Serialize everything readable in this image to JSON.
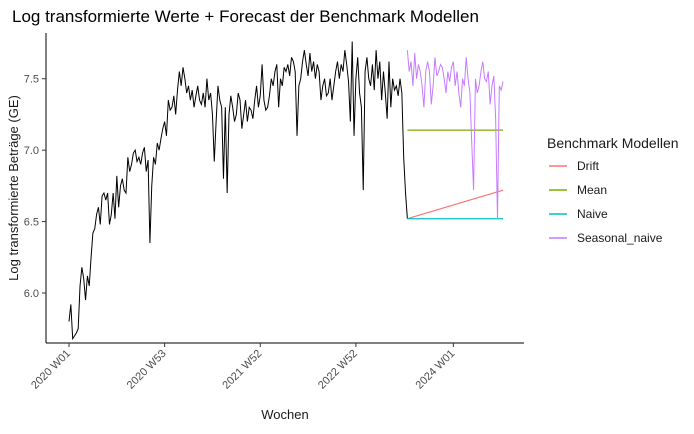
{
  "chart_data": {
    "type": "line",
    "title": "Log transformierte Werte + Forecast der Benchmark Modellen",
    "xlabel": "Wochen",
    "ylabel": "Log transformierte Beträge (GE)",
    "x_ticks": [
      "2020 W01",
      "2020 W53",
      "2021 W52",
      "2022 W52",
      "2024 W01"
    ],
    "y_ticks": [
      "6.0",
      "6.5",
      "7.0",
      "7.5"
    ],
    "ylim": [
      5.65,
      7.82
    ],
    "legend": {
      "title": "Benchmark Modellen",
      "position": "right",
      "entries": [
        "Drift",
        "Mean",
        "Naive",
        "Seasonal_naive"
      ]
    },
    "grid": false,
    "history": {
      "x_unit": "weeks since 2020 W01",
      "x": [
        0,
        1,
        2,
        3,
        4,
        5,
        6,
        7,
        8,
        9,
        10,
        11,
        12,
        13,
        14,
        15,
        16,
        17,
        18,
        19,
        20,
        21,
        22,
        23,
        24,
        25,
        26,
        27,
        28,
        29,
        30,
        31,
        32,
        33,
        34,
        35,
        36,
        37,
        38,
        39,
        40,
        41,
        42,
        43,
        44,
        45,
        46,
        47,
        48,
        49,
        50,
        51,
        52,
        53,
        54,
        55,
        56,
        57,
        58,
        59,
        60,
        61,
        62,
        63,
        64,
        65,
        66,
        67,
        68,
        69,
        70,
        71,
        72,
        73,
        74,
        75,
        76,
        77,
        78,
        79,
        80,
        81,
        82,
        83,
        84,
        85,
        86,
        87,
        88,
        89,
        90,
        91,
        92,
        93,
        94,
        95,
        96,
        97,
        98,
        99,
        100,
        101,
        102,
        103,
        104,
        105,
        106,
        107,
        108,
        109,
        110,
        111,
        112,
        113,
        114,
        115,
        116,
        117,
        118,
        119,
        120,
        121,
        122,
        123,
        124,
        125,
        126,
        127,
        128,
        129,
        130,
        131,
        132,
        133,
        134,
        135,
        136,
        137,
        138,
        139,
        140,
        141,
        142,
        143,
        144,
        145,
        146,
        147,
        148,
        149,
        150,
        151,
        152,
        153,
        154,
        155,
        156,
        157,
        158,
        159,
        160,
        161,
        162,
        163,
        164,
        165,
        166,
        167,
        168,
        169,
        170,
        171,
        172,
        173,
        174,
        175,
        176,
        177,
        178,
        179,
        180,
        181,
        182,
        183,
        184
      ],
      "y": [
        5.8,
        5.92,
        5.68,
        5.7,
        5.72,
        5.75,
        6.05,
        6.18,
        6.1,
        5.95,
        6.12,
        6.05,
        6.25,
        6.42,
        6.45,
        6.55,
        6.6,
        6.48,
        6.68,
        6.7,
        6.65,
        6.7,
        6.48,
        6.55,
        6.7,
        6.52,
        6.82,
        6.6,
        6.75,
        6.8,
        6.72,
        6.7,
        6.95,
        6.85,
        6.9,
        6.98,
        7.0,
        6.92,
        6.95,
        6.9,
        6.98,
        7.02,
        6.85,
        6.93,
        6.35,
        6.75,
        6.95,
        6.9,
        7.05,
        7.0,
        7.08,
        7.15,
        7.2,
        7.1,
        7.35,
        7.28,
        7.3,
        7.38,
        7.25,
        7.42,
        7.55,
        7.45,
        7.58,
        7.5,
        7.4,
        7.45,
        7.35,
        7.42,
        7.3,
        7.38,
        7.45,
        7.35,
        7.32,
        7.4,
        7.3,
        7.5,
        7.35,
        7.4,
        7.25,
        6.92,
        7.2,
        7.45,
        7.35,
        7.3,
        6.8,
        7.3,
        6.7,
        7.25,
        7.38,
        7.3,
        7.2,
        7.25,
        7.4,
        7.35,
        7.15,
        7.25,
        7.35,
        7.2,
        7.3,
        7.28,
        7.22,
        7.35,
        7.45,
        7.3,
        7.38,
        7.6,
        7.35,
        7.28,
        7.3,
        7.38,
        7.5,
        7.45,
        7.55,
        7.6,
        7.3,
        7.5,
        7.45,
        7.58,
        7.55,
        7.6,
        7.52,
        7.65,
        7.62,
        7.55,
        7.1,
        7.45,
        7.5,
        7.62,
        7.7,
        7.6,
        7.52,
        7.68,
        7.55,
        7.62,
        7.5,
        7.6,
        7.55,
        7.35,
        7.45,
        7.5,
        7.38,
        7.4,
        7.5,
        7.35,
        7.45,
        7.55,
        7.62,
        7.5,
        7.6,
        7.55,
        7.7,
        7.6,
        7.48,
        7.2,
        7.76,
        7.1,
        7.5,
        7.65,
        7.4,
        7.3,
        6.72,
        7.55,
        7.65,
        7.5,
        7.45,
        7.6,
        7.42,
        7.7,
        7.5,
        7.62,
        7.35,
        7.55,
        7.4,
        7.22,
        7.62,
        7.3,
        7.5,
        7.42,
        7.45,
        7.38,
        7.5,
        7.4,
        6.95,
        6.7,
        6.52
      ]
    },
    "forecast_start_x": 184,
    "forecast_end_x": 236,
    "series": [
      {
        "name": "Drift",
        "color": "#F8766D",
        "y_start": 6.52,
        "y_end": 6.72
      },
      {
        "name": "Mean",
        "color": "#7CAE00",
        "y_start": 7.14,
        "y_end": 7.14
      },
      {
        "name": "Naive",
        "color": "#00BFC4",
        "y_start": 6.52,
        "y_end": 6.52
      },
      {
        "name": "Seasonal_naive",
        "color": "#C77CFF",
        "y": [
          7.7,
          7.55,
          7.62,
          7.45,
          7.68,
          7.5,
          7.6,
          7.55,
          7.45,
          7.3,
          7.55,
          7.62,
          7.55,
          7.32,
          7.45,
          7.65,
          7.52,
          7.55,
          7.6,
          7.58,
          7.5,
          7.4,
          7.55,
          7.48,
          7.58,
          7.62,
          7.45,
          7.55,
          7.4,
          7.3,
          7.5,
          7.45,
          7.65,
          7.5,
          7.4,
          7.05,
          6.72,
          7.5,
          7.4,
          7.45,
          7.55,
          7.62,
          7.5,
          7.48,
          7.55,
          7.32,
          7.45,
          7.52,
          7.22,
          6.52,
          7.45,
          7.42,
          7.48
        ]
      }
    ]
  }
}
